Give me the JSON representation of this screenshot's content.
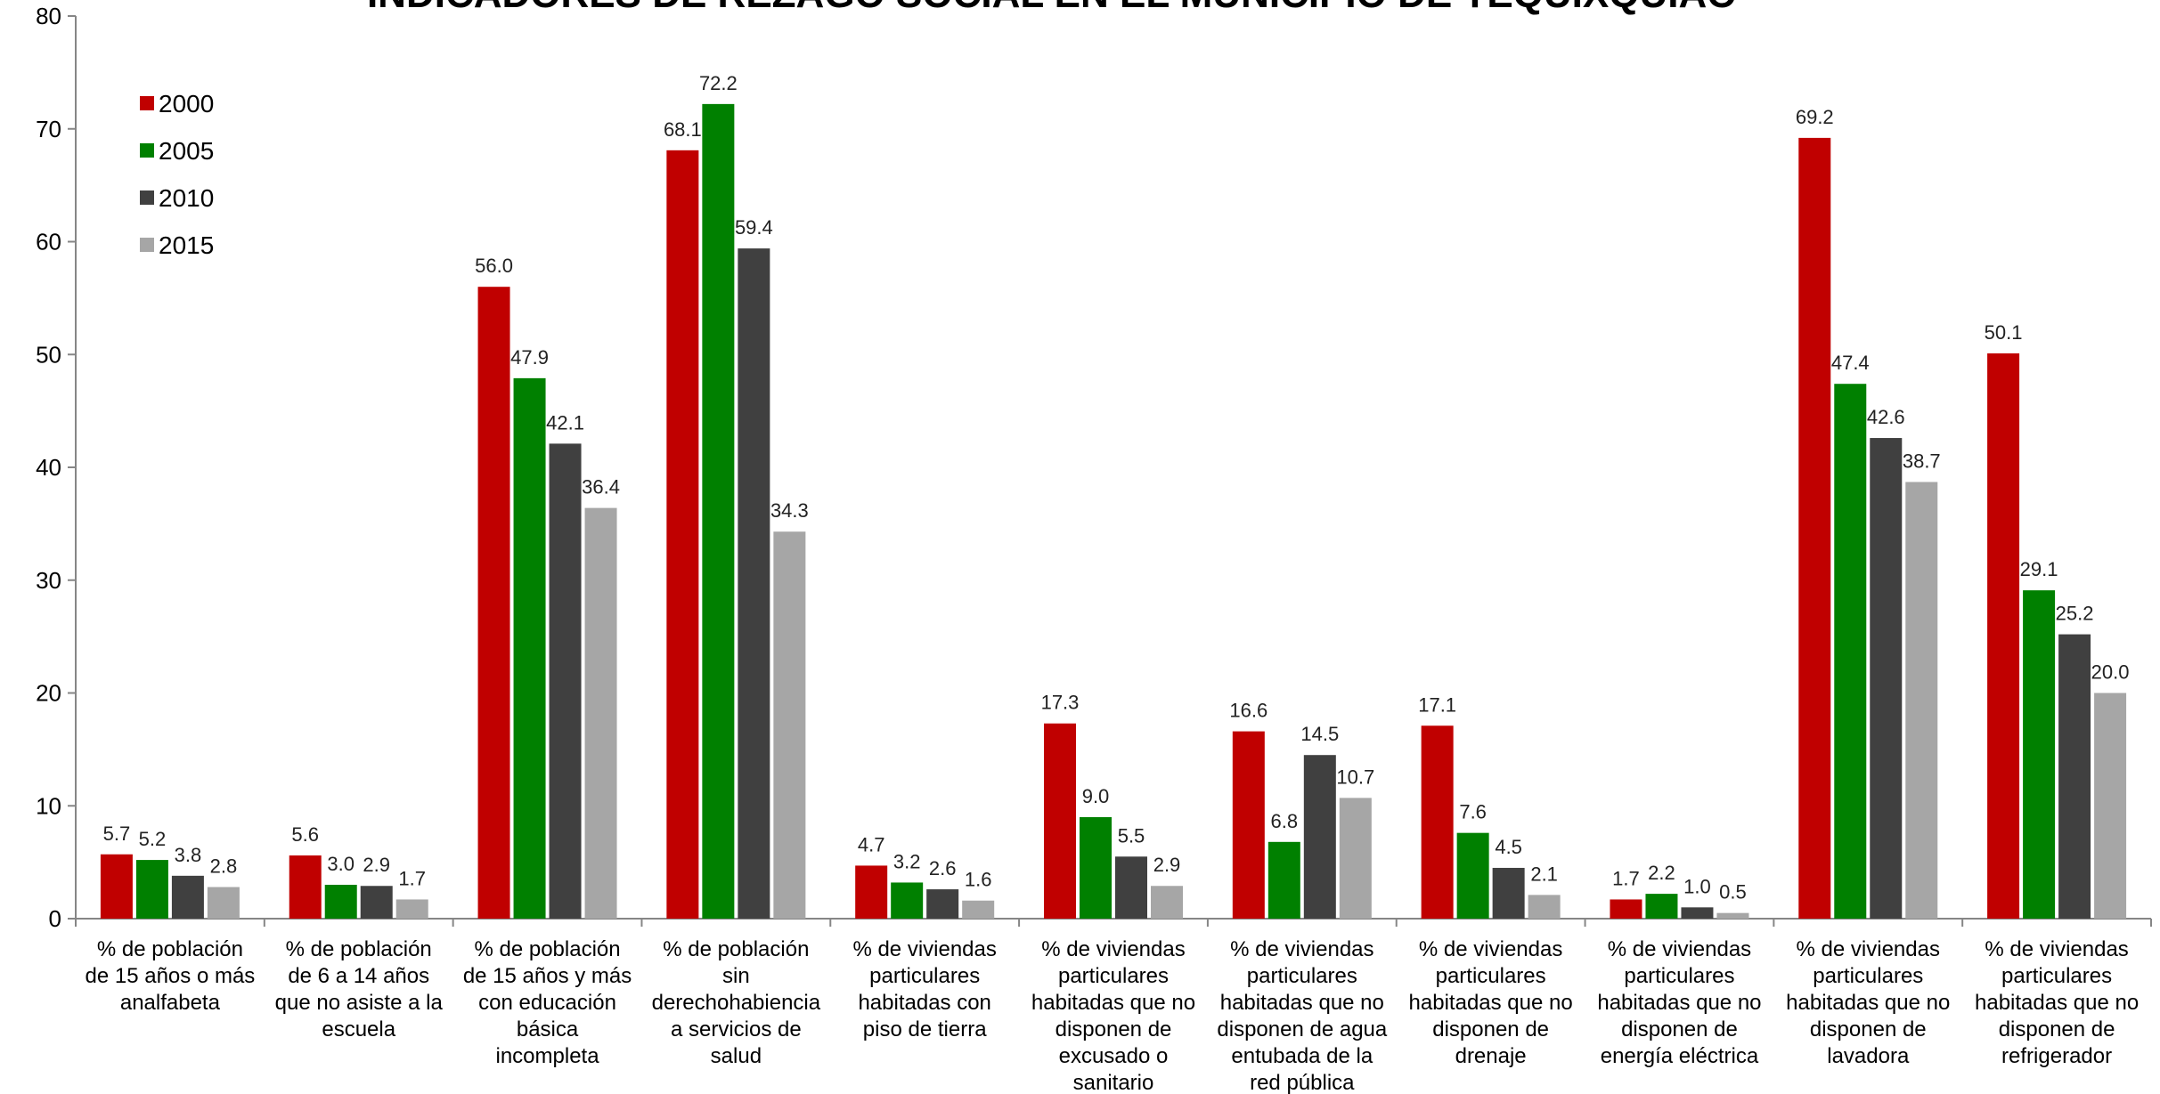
{
  "chart_data": {
    "type": "bar",
    "title": "INDICADORES DE REZAGO SOCIAL EN EL MUNICIPIO DE TEQUIXQUIAC",
    "ylim": [
      0,
      80
    ],
    "yticks": [
      0,
      10,
      20,
      30,
      40,
      50,
      60,
      70,
      80
    ],
    "grid": false,
    "legend_position": "top-left",
    "categories": [
      [
        "% de población",
        "de 15 años o más",
        "analfabeta"
      ],
      [
        "% de población",
        "de 6 a 14 años",
        "que no asiste a la",
        "escuela"
      ],
      [
        "% de población",
        "de 15 años y más",
        "con educación",
        "básica",
        "incompleta"
      ],
      [
        "% de población",
        "sin",
        "derechohabiencia",
        "a servicios de",
        "salud"
      ],
      [
        "% de viviendas",
        "particulares",
        "habitadas con",
        "piso de tierra"
      ],
      [
        "% de viviendas",
        "particulares",
        "habitadas que no",
        "disponen de",
        "excusado o",
        "sanitario"
      ],
      [
        "% de viviendas",
        "particulares",
        "habitadas que no",
        "disponen de agua",
        "entubada de la",
        "red pública"
      ],
      [
        "% de viviendas",
        "particulares",
        "habitadas que no",
        "disponen de",
        "drenaje"
      ],
      [
        "% de viviendas",
        "particulares",
        "habitadas que no",
        "disponen de",
        "energía eléctrica"
      ],
      [
        "% de viviendas",
        "particulares",
        "habitadas que no",
        "disponen de",
        "lavadora"
      ],
      [
        "% de viviendas",
        "particulares",
        "habitadas que no",
        "disponen de",
        "refrigerador"
      ]
    ],
    "series": [
      {
        "name": "2000",
        "color": "#c00000",
        "values": [
          5.7,
          5.6,
          56.0,
          68.1,
          4.7,
          17.3,
          16.6,
          17.1,
          1.7,
          69.2,
          50.1
        ]
      },
      {
        "name": "2005",
        "color": "#008000",
        "values": [
          5.2,
          3.0,
          47.9,
          72.2,
          3.2,
          9.0,
          6.8,
          7.6,
          2.2,
          47.4,
          29.1
        ]
      },
      {
        "name": "2010",
        "color": "#404040",
        "values": [
          3.8,
          2.9,
          42.1,
          59.4,
          2.6,
          5.5,
          14.5,
          4.5,
          1.0,
          42.6,
          25.2
        ]
      },
      {
        "name": "2015",
        "color": "#a6a6a6",
        "values": [
          2.8,
          1.7,
          36.4,
          34.3,
          1.6,
          2.9,
          10.7,
          2.1,
          0.5,
          38.7,
          20.0
        ]
      }
    ]
  }
}
